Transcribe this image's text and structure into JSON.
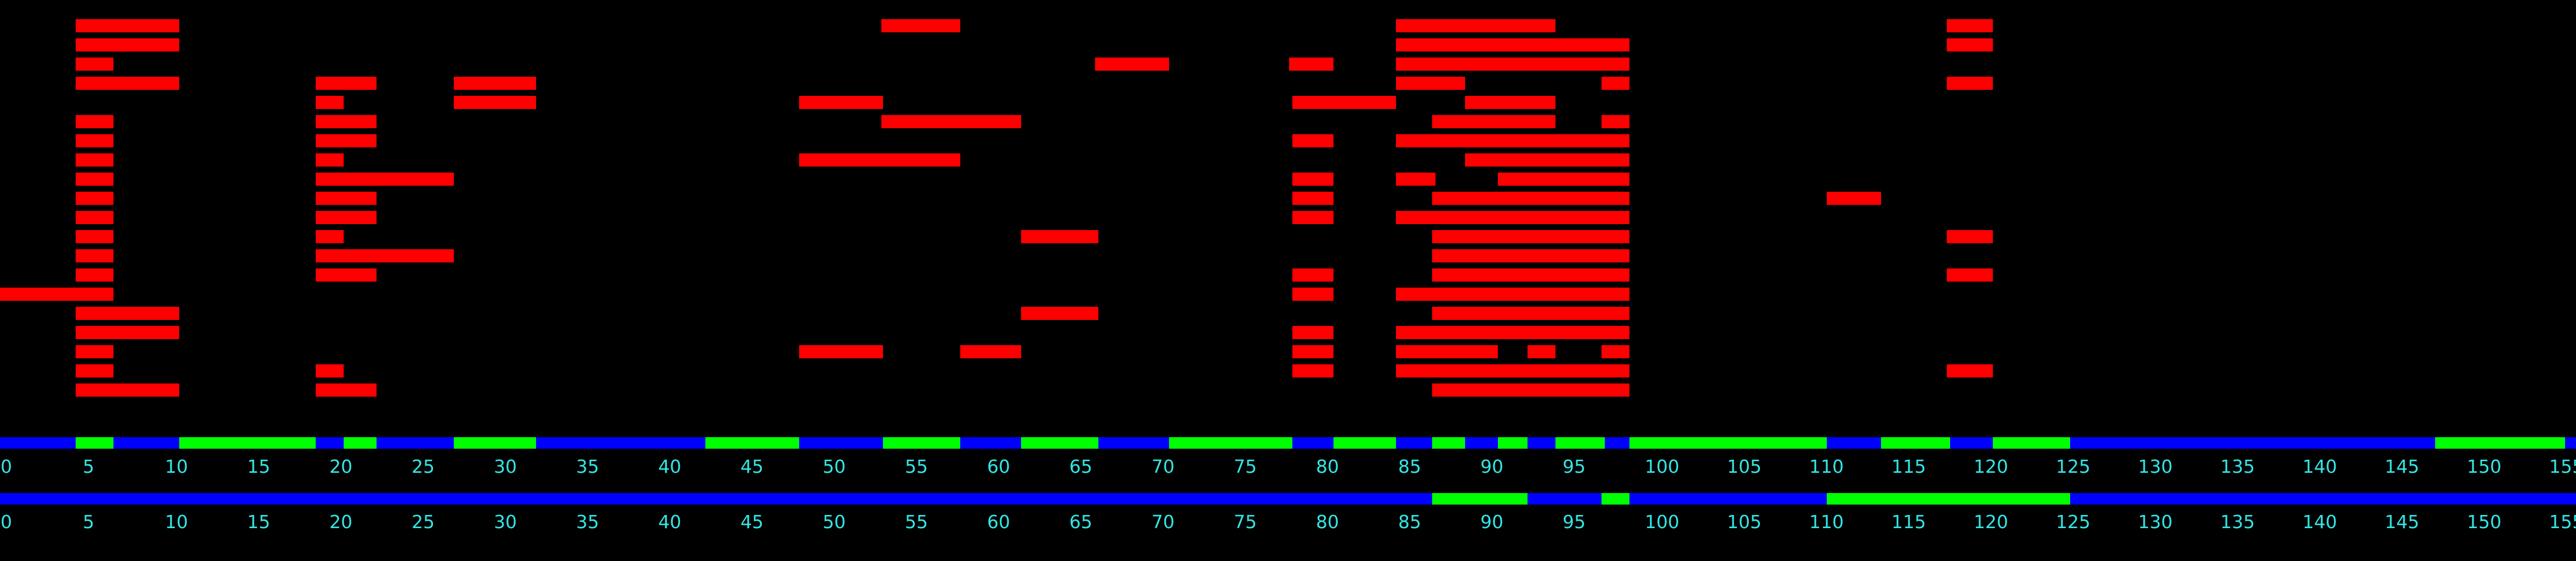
{
  "chart_data": {
    "type": "bar",
    "title": "",
    "xlabel": "",
    "ylabel": "",
    "xlim": [
      0,
      156
    ],
    "row_count": 20,
    "colors": {
      "background": "#000000",
      "segment": "#ff0000",
      "track_on": "#00ff00",
      "track_off": "#0000ff",
      "tick": "#33e6e6"
    },
    "segments": [
      {
        "row": 0,
        "start": 4.6,
        "end": 10.9
      },
      {
        "row": 0,
        "start": 53.6,
        "end": 58.4
      },
      {
        "row": 0,
        "start": 84.9,
        "end": 94.6
      },
      {
        "row": 0,
        "start": 118.4,
        "end": 121.2
      },
      {
        "row": 1,
        "start": 4.6,
        "end": 10.9
      },
      {
        "row": 1,
        "start": 84.9,
        "end": 99.1
      },
      {
        "row": 1,
        "start": 118.4,
        "end": 121.2
      },
      {
        "row": 2,
        "start": 4.6,
        "end": 6.9
      },
      {
        "row": 2,
        "start": 66.6,
        "end": 71.1
      },
      {
        "row": 2,
        "start": 78.4,
        "end": 81.1
      },
      {
        "row": 2,
        "start": 84.9,
        "end": 99.1
      },
      {
        "row": 3,
        "start": 4.6,
        "end": 10.9
      },
      {
        "row": 3,
        "start": 19.2,
        "end": 22.9
      },
      {
        "row": 3,
        "start": 27.6,
        "end": 32.6
      },
      {
        "row": 3,
        "start": 84.9,
        "end": 89.1
      },
      {
        "row": 3,
        "start": 97.4,
        "end": 99.1
      },
      {
        "row": 3,
        "start": 118.4,
        "end": 121.2
      },
      {
        "row": 4,
        "start": 19.2,
        "end": 20.9
      },
      {
        "row": 4,
        "start": 27.6,
        "end": 32.6
      },
      {
        "row": 4,
        "start": 48.6,
        "end": 53.7
      },
      {
        "row": 4,
        "start": 78.6,
        "end": 84.9
      },
      {
        "row": 4,
        "start": 89.1,
        "end": 94.6
      },
      {
        "row": 5,
        "start": 4.6,
        "end": 6.9
      },
      {
        "row": 5,
        "start": 19.2,
        "end": 22.9
      },
      {
        "row": 5,
        "start": 53.6,
        "end": 62.1
      },
      {
        "row": 5,
        "start": 87.1,
        "end": 94.6
      },
      {
        "row": 5,
        "start": 97.4,
        "end": 99.1
      },
      {
        "row": 6,
        "start": 4.6,
        "end": 6.9
      },
      {
        "row": 6,
        "start": 19.2,
        "end": 22.9
      },
      {
        "row": 6,
        "start": 78.6,
        "end": 81.1
      },
      {
        "row": 6,
        "start": 84.9,
        "end": 99.1
      },
      {
        "row": 7,
        "start": 4.6,
        "end": 6.9
      },
      {
        "row": 7,
        "start": 19.2,
        "end": 20.9
      },
      {
        "row": 7,
        "start": 48.6,
        "end": 58.4
      },
      {
        "row": 7,
        "start": 89.1,
        "end": 99.1
      },
      {
        "row": 8,
        "start": 4.6,
        "end": 6.9
      },
      {
        "row": 8,
        "start": 19.2,
        "end": 27.6
      },
      {
        "row": 8,
        "start": 78.6,
        "end": 81.1
      },
      {
        "row": 8,
        "start": 84.9,
        "end": 87.3
      },
      {
        "row": 8,
        "start": 91.1,
        "end": 99.1
      },
      {
        "row": 9,
        "start": 4.6,
        "end": 6.9
      },
      {
        "row": 9,
        "start": 19.2,
        "end": 22.9
      },
      {
        "row": 9,
        "start": 78.6,
        "end": 81.1
      },
      {
        "row": 9,
        "start": 87.1,
        "end": 99.1
      },
      {
        "row": 9,
        "start": 111.1,
        "end": 114.4
      },
      {
        "row": 10,
        "start": 4.6,
        "end": 6.9
      },
      {
        "row": 10,
        "start": 19.2,
        "end": 22.9
      },
      {
        "row": 10,
        "start": 78.6,
        "end": 81.1
      },
      {
        "row": 10,
        "start": 84.9,
        "end": 99.1
      },
      {
        "row": 11,
        "start": 4.6,
        "end": 6.9
      },
      {
        "row": 11,
        "start": 19.2,
        "end": 20.9
      },
      {
        "row": 11,
        "start": 62.1,
        "end": 66.8
      },
      {
        "row": 11,
        "start": 87.1,
        "end": 99.1
      },
      {
        "row": 11,
        "start": 118.4,
        "end": 121.2
      },
      {
        "row": 12,
        "start": 4.6,
        "end": 6.9
      },
      {
        "row": 12,
        "start": 19.2,
        "end": 27.6
      },
      {
        "row": 12,
        "start": 87.1,
        "end": 99.1
      },
      {
        "row": 13,
        "start": 4.6,
        "end": 6.9
      },
      {
        "row": 13,
        "start": 19.2,
        "end": 22.9
      },
      {
        "row": 13,
        "start": 78.6,
        "end": 81.1
      },
      {
        "row": 13,
        "start": 87.1,
        "end": 99.1
      },
      {
        "row": 13,
        "start": 118.4,
        "end": 121.2
      },
      {
        "row": 14,
        "start": 0.0,
        "end": 6.9
      },
      {
        "row": 14,
        "start": 78.6,
        "end": 81.1
      },
      {
        "row": 14,
        "start": 84.9,
        "end": 99.1
      },
      {
        "row": 15,
        "start": 4.6,
        "end": 10.9
      },
      {
        "row": 15,
        "start": 62.1,
        "end": 66.8
      },
      {
        "row": 15,
        "start": 87.1,
        "end": 99.1
      },
      {
        "row": 16,
        "start": 4.6,
        "end": 10.9
      },
      {
        "row": 16,
        "start": 78.6,
        "end": 81.1
      },
      {
        "row": 16,
        "start": 84.9,
        "end": 99.1
      },
      {
        "row": 17,
        "start": 4.6,
        "end": 6.9
      },
      {
        "row": 17,
        "start": 48.6,
        "end": 53.7
      },
      {
        "row": 17,
        "start": 58.4,
        "end": 62.1
      },
      {
        "row": 17,
        "start": 78.6,
        "end": 81.1
      },
      {
        "row": 17,
        "start": 84.9,
        "end": 91.1
      },
      {
        "row": 17,
        "start": 92.9,
        "end": 94.6
      },
      {
        "row": 17,
        "start": 97.4,
        "end": 99.1
      },
      {
        "row": 18,
        "start": 4.6,
        "end": 6.9
      },
      {
        "row": 18,
        "start": 19.2,
        "end": 20.9
      },
      {
        "row": 18,
        "start": 78.6,
        "end": 81.1
      },
      {
        "row": 18,
        "start": 84.9,
        "end": 99.1
      },
      {
        "row": 18,
        "start": 118.4,
        "end": 121.2
      },
      {
        "row": 19,
        "start": 4.6,
        "end": 10.9
      },
      {
        "row": 19,
        "start": 19.2,
        "end": 22.9
      },
      {
        "row": 19,
        "start": 87.1,
        "end": 99.1
      }
    ],
    "tracks": [
      {
        "on_ranges": [
          [
            4.6,
            6.9
          ],
          [
            10.9,
            19.2
          ],
          [
            20.9,
            22.9
          ],
          [
            27.6,
            32.6
          ],
          [
            42.9,
            48.6
          ],
          [
            53.7,
            58.4
          ],
          [
            62.1,
            66.8
          ],
          [
            71.1,
            78.6
          ],
          [
            81.1,
            84.9
          ],
          [
            87.1,
            89.1
          ],
          [
            91.1,
            92.9
          ],
          [
            94.6,
            97.6
          ],
          [
            99.1,
            111.1
          ],
          [
            114.4,
            118.6
          ],
          [
            121.2,
            125.9
          ],
          [
            148.1,
            156.0
          ]
        ]
      },
      {
        "on_ranges": [
          [
            87.1,
            92.9
          ],
          [
            97.4,
            99.1
          ],
          [
            111.1,
            125.9
          ]
        ]
      }
    ],
    "ticks": [
      "0",
      "5",
      "10",
      "15",
      "20",
      "25",
      "30",
      "35",
      "40",
      "45",
      "50",
      "55",
      "60",
      "65",
      "70",
      "75",
      "80",
      "85",
      "90",
      "95",
      "100",
      "105",
      "110",
      "115",
      "120",
      "125",
      "130",
      "135",
      "140",
      "145",
      "150",
      "155"
    ]
  }
}
